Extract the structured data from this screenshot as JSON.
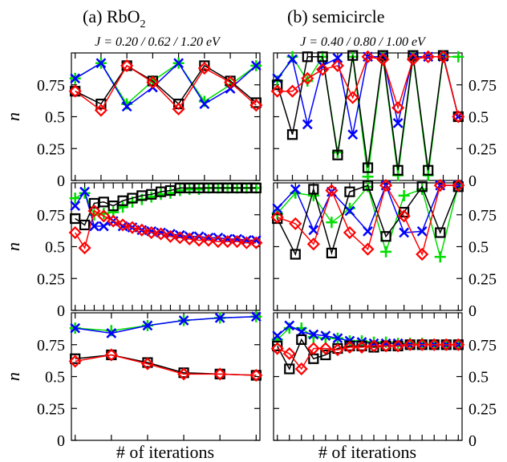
{
  "figure": {
    "col_a": {
      "title_prefix": "(a) RbO",
      "title_sub": "2",
      "subtitle": "J = 0.20 / 0.62 / 1.20 eV"
    },
    "col_b": {
      "title": "(b) semicircle",
      "subtitle": "J = 0.40 / 0.80 / 1.00 eV"
    },
    "ylabel": "n",
    "xlabel": "# of iterations",
    "yticks": [
      "0",
      "0.25",
      "0.5",
      "0.75"
    ]
  },
  "colors": {
    "black": "#000000",
    "red": "#ff0000",
    "green": "#00dd00",
    "blue": "#0000ff"
  },
  "chart_data": [
    {
      "type": "line",
      "panel": "a-top",
      "xlabel": "# of iterations",
      "ylabel": "n",
      "ylim": [
        0,
        1
      ],
      "grid": false,
      "markers": {
        "black": "square",
        "red": "diamond",
        "green": "plus",
        "blue": "cross"
      },
      "series": [
        {
          "color": "black",
          "x": [
            0,
            1,
            2,
            3,
            4,
            5,
            6,
            7
          ],
          "y": [
            0.7,
            0.6,
            0.9,
            0.78,
            0.6,
            0.9,
            0.78,
            0.61
          ]
        },
        {
          "color": "red",
          "x": [
            0,
            1,
            2,
            3,
            4,
            5,
            6,
            7
          ],
          "y": [
            0.7,
            0.55,
            0.9,
            0.77,
            0.56,
            0.88,
            0.77,
            0.59
          ]
        },
        {
          "color": "green",
          "x": [
            0,
            1,
            2,
            3,
            4,
            5,
            6,
            7
          ],
          "y": [
            0.8,
            0.92,
            0.6,
            0.78,
            0.92,
            0.62,
            0.75,
            0.9
          ]
        },
        {
          "color": "blue",
          "x": [
            0,
            1,
            2,
            3,
            4,
            5,
            6,
            7
          ],
          "y": [
            0.8,
            0.92,
            0.58,
            0.73,
            0.92,
            0.6,
            0.72,
            0.9
          ]
        }
      ]
    },
    {
      "type": "line",
      "panel": "b-top",
      "xlabel": "# of iterations",
      "ylabel": "n",
      "ylim": [
        0,
        1
      ],
      "grid": false,
      "markers": {
        "black": "square",
        "red": "diamond",
        "green": "plus",
        "blue": "cross"
      },
      "series": [
        {
          "color": "black",
          "x": [
            0,
            1,
            2,
            3,
            4,
            5,
            6,
            7,
            8,
            9,
            10,
            11,
            12
          ],
          "y": [
            0.75,
            0.36,
            0.97,
            0.97,
            0.2,
            0.98,
            0.1,
            0.98,
            0.08,
            0.98,
            0.08,
            0.98,
            0.5
          ]
        },
        {
          "color": "red",
          "x": [
            0,
            1,
            2,
            3,
            4,
            5,
            6,
            7,
            8,
            9,
            10,
            11,
            12
          ],
          "y": [
            0.7,
            0.7,
            0.8,
            0.87,
            0.9,
            0.65,
            0.97,
            0.95,
            0.57,
            0.95,
            0.97,
            0.97,
            0.5
          ]
        },
        {
          "color": "green",
          "x": [
            0,
            1,
            2,
            3,
            4,
            5,
            6,
            7,
            8,
            9,
            10,
            11,
            12
          ],
          "y": [
            0.78,
            0.97,
            0.78,
            0.97,
            0.22,
            0.97,
            0.03,
            0.97,
            0.04,
            0.97,
            0.04,
            0.97,
            0.97
          ]
        },
        {
          "color": "blue",
          "x": [
            0,
            1,
            2,
            3,
            4,
            5,
            6,
            7,
            8,
            9,
            10,
            11,
            12
          ],
          "y": [
            0.8,
            0.95,
            0.44,
            0.9,
            0.96,
            0.36,
            0.97,
            0.97,
            0.45,
            0.97,
            0.97,
            0.97,
            0.5
          ]
        }
      ]
    },
    {
      "type": "line",
      "panel": "a-middle",
      "xlabel": "# of iterations",
      "ylabel": "n",
      "ylim": [
        0,
        1
      ],
      "grid": false,
      "markers": {
        "black": "square",
        "red": "diamond",
        "green": "plus",
        "blue": "cross"
      },
      "series": [
        {
          "color": "black",
          "x": [
            0,
            1,
            2,
            3,
            4,
            5,
            6,
            7,
            8,
            9,
            10,
            11,
            12,
            13,
            14,
            15,
            16,
            17,
            18,
            19
          ],
          "y": [
            0.72,
            0.67,
            0.84,
            0.85,
            0.82,
            0.86,
            0.88,
            0.9,
            0.91,
            0.93,
            0.94,
            0.96,
            0.96,
            0.96,
            0.96,
            0.96,
            0.96,
            0.96,
            0.96,
            0.96
          ]
        },
        {
          "color": "red",
          "x": [
            0,
            1,
            2,
            3,
            4,
            5,
            6,
            7,
            8,
            9,
            10,
            11,
            12,
            13,
            14,
            15,
            16,
            17,
            18,
            19
          ],
          "y": [
            0.61,
            0.49,
            0.78,
            0.74,
            0.7,
            0.67,
            0.65,
            0.63,
            0.61,
            0.6,
            0.58,
            0.57,
            0.56,
            0.55,
            0.55,
            0.54,
            0.54,
            0.54,
            0.53,
            0.53
          ]
        },
        {
          "color": "green",
          "x": [
            0,
            1,
            2,
            3,
            4,
            5,
            6,
            7,
            8,
            9,
            10,
            11,
            12,
            13,
            14,
            15,
            16,
            17,
            18,
            19
          ],
          "y": [
            0.88,
            0.92,
            0.75,
            0.76,
            0.77,
            0.81,
            0.85,
            0.87,
            0.89,
            0.91,
            0.92,
            0.94,
            0.95,
            0.95,
            0.96,
            0.96,
            0.96,
            0.96,
            0.96,
            0.96
          ]
        },
        {
          "color": "blue",
          "x": [
            0,
            1,
            2,
            3,
            4,
            5,
            6,
            7,
            8,
            9,
            10,
            11,
            12,
            13,
            14,
            15,
            16,
            17,
            18,
            19
          ],
          "y": [
            0.82,
            0.93,
            0.66,
            0.66,
            0.7,
            0.66,
            0.65,
            0.63,
            0.62,
            0.61,
            0.6,
            0.59,
            0.58,
            0.58,
            0.57,
            0.57,
            0.56,
            0.56,
            0.55,
            0.55
          ]
        }
      ]
    },
    {
      "type": "line",
      "panel": "b-middle",
      "xlabel": "# of iterations",
      "ylabel": "n",
      "ylim": [
        0,
        1
      ],
      "grid": false,
      "markers": {
        "black": "square",
        "red": "diamond",
        "green": "plus",
        "blue": "cross"
      },
      "series": [
        {
          "color": "black",
          "x": [
            0,
            1,
            2,
            3,
            4,
            5,
            6,
            7,
            8,
            9,
            10
          ],
          "y": [
            0.72,
            0.44,
            0.95,
            0.45,
            0.93,
            0.98,
            0.58,
            0.77,
            0.97,
            0.61,
            0.97
          ]
        },
        {
          "color": "red",
          "x": [
            0,
            1,
            2,
            3,
            4,
            5,
            6,
            7,
            8,
            9,
            10
          ],
          "y": [
            0.73,
            0.68,
            0.52,
            0.94,
            0.61,
            0.48,
            0.98,
            0.74,
            0.44,
            0.98,
            0.98
          ]
        },
        {
          "color": "green",
          "x": [
            0,
            1,
            2,
            3,
            4,
            5,
            6,
            7,
            8,
            9,
            10
          ],
          "y": [
            0.76,
            0.92,
            0.9,
            0.69,
            0.8,
            0.97,
            0.46,
            0.9,
            0.95,
            0.42,
            0.98
          ]
        },
        {
          "color": "blue",
          "x": [
            0,
            1,
            2,
            3,
            4,
            5,
            6,
            7,
            8,
            9,
            10
          ],
          "y": [
            0.8,
            0.95,
            0.63,
            0.93,
            0.78,
            0.62,
            0.98,
            0.61,
            0.62,
            0.98,
            0.98
          ]
        }
      ]
    },
    {
      "type": "line",
      "panel": "a-bottom",
      "xlabel": "# of iterations",
      "ylabel": "n",
      "ylim": [
        0,
        1
      ],
      "grid": false,
      "markers": {
        "black": "square",
        "red": "diamond",
        "green": "plus",
        "blue": "cross"
      },
      "series": [
        {
          "color": "black",
          "x": [
            0,
            1,
            2,
            3,
            4,
            5
          ],
          "y": [
            0.64,
            0.67,
            0.61,
            0.53,
            0.52,
            0.51
          ]
        },
        {
          "color": "red",
          "x": [
            0,
            1,
            2,
            3,
            4,
            5
          ],
          "y": [
            0.62,
            0.67,
            0.6,
            0.52,
            0.52,
            0.51
          ]
        },
        {
          "color": "green",
          "x": [
            0,
            1,
            2,
            3,
            4,
            5
          ],
          "y": [
            0.88,
            0.86,
            0.9,
            0.94,
            0.96,
            0.97
          ]
        },
        {
          "color": "blue",
          "x": [
            0,
            1,
            2,
            3,
            4,
            5
          ],
          "y": [
            0.88,
            0.84,
            0.9,
            0.94,
            0.96,
            0.97
          ]
        }
      ]
    },
    {
      "type": "line",
      "panel": "b-bottom",
      "xlabel": "# of iterations",
      "ylabel": "n",
      "ylim": [
        0,
        1
      ],
      "grid": false,
      "markers": {
        "black": "square",
        "red": "diamond",
        "green": "plus",
        "blue": "cross"
      },
      "series": [
        {
          "color": "black",
          "x": [
            0,
            1,
            2,
            3,
            4,
            5,
            6,
            7,
            8,
            9,
            10,
            11,
            12,
            13,
            14,
            15
          ],
          "y": [
            0.74,
            0.56,
            0.79,
            0.64,
            0.67,
            0.72,
            0.74,
            0.74,
            0.73,
            0.74,
            0.74,
            0.75,
            0.75,
            0.75,
            0.75,
            0.75
          ]
        },
        {
          "color": "red",
          "x": [
            0,
            1,
            2,
            3,
            4,
            5,
            6,
            7,
            8,
            9,
            10,
            11,
            12,
            13,
            14,
            15
          ],
          "y": [
            0.72,
            0.68,
            0.56,
            0.72,
            0.72,
            0.71,
            0.73,
            0.73,
            0.74,
            0.74,
            0.74,
            0.75,
            0.75,
            0.75,
            0.75,
            0.75
          ]
        },
        {
          "color": "green",
          "x": [
            0,
            1,
            2,
            3,
            4,
            5,
            6,
            7,
            8,
            9,
            10,
            11,
            12,
            13,
            14,
            15
          ],
          "y": [
            0.79,
            0.88,
            0.88,
            0.81,
            0.8,
            0.8,
            0.78,
            0.78,
            0.77,
            0.77,
            0.76,
            0.76,
            0.76,
            0.75,
            0.75,
            0.75
          ]
        },
        {
          "color": "blue",
          "x": [
            0,
            1,
            2,
            3,
            4,
            5,
            6,
            7,
            8,
            9,
            10,
            11,
            12,
            13,
            14,
            15
          ],
          "y": [
            0.82,
            0.9,
            0.85,
            0.83,
            0.82,
            0.8,
            0.78,
            0.77,
            0.76,
            0.76,
            0.76,
            0.75,
            0.75,
            0.75,
            0.75,
            0.75
          ]
        }
      ]
    }
  ]
}
